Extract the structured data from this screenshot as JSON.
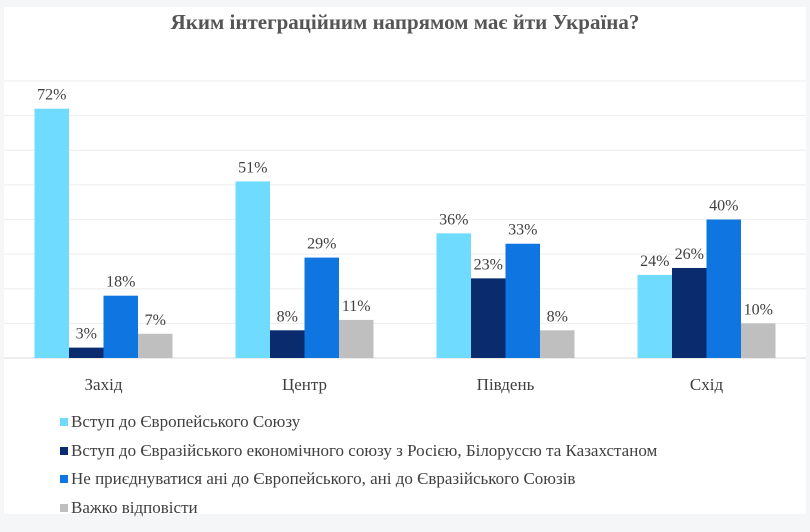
{
  "chart_data": {
    "type": "bar",
    "title": "Яким інтеграційним напрямом має йти Україна?",
    "categories": [
      "Захід",
      "Центр",
      "Південь",
      "Схід"
    ],
    "ylim": [
      0,
      80
    ],
    "grid": true,
    "legend_position": "bottom",
    "value_suffix": "%",
    "series": [
      {
        "name": "Вступ до Європейського Союзу",
        "color": "#6fdcff",
        "values": [
          72,
          51,
          36,
          24
        ]
      },
      {
        "name": "Вступ до Євразійського економічного союзу  з Росією, Білоруссю та Казахстаном",
        "color": "#0a2c6e",
        "values": [
          3,
          8,
          23,
          26
        ]
      },
      {
        "name": "Не приєднуватися ані до Європейського, ані до Євразійського Союзів",
        "color": "#0f75e0",
        "values": [
          18,
          29,
          33,
          40
        ]
      },
      {
        "name": "Важко відповісти",
        "color": "#bfbfbf",
        "values": [
          7,
          11,
          8,
          10
        ]
      }
    ]
  }
}
